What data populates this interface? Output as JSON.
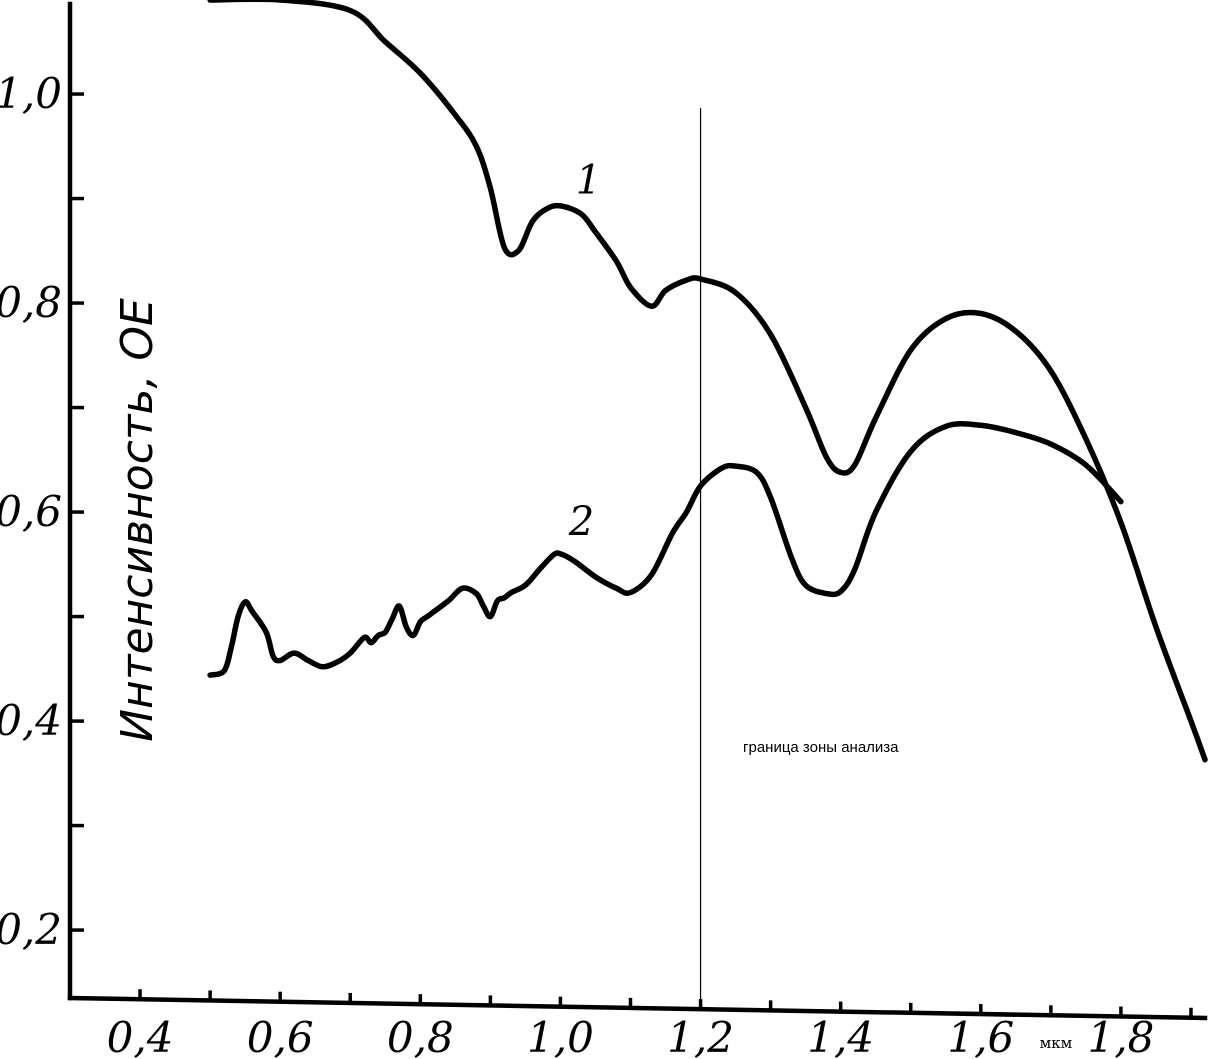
{
  "chart_data": {
    "type": "line",
    "title": "",
    "xlabel": "мкм",
    "ylabel": "Интенсивность, ОЕ",
    "xlim": [
      0.3,
      1.92
    ],
    "ylim": [
      0.135,
      1.09
    ],
    "x_ticks": [
      0.4,
      0.5,
      0.6,
      0.7,
      0.8,
      0.9,
      1.0,
      1.1,
      1.2,
      1.3,
      1.4,
      1.5,
      1.6,
      1.7,
      1.8,
      1.9
    ],
    "x_tick_labels": [
      {
        "value": 0.4,
        "label": "0,4"
      },
      {
        "value": 0.6,
        "label": "0,6"
      },
      {
        "value": 0.8,
        "label": "0,8"
      },
      {
        "value": 1.0,
        "label": "1,0"
      },
      {
        "value": 1.2,
        "label": "1,2"
      },
      {
        "value": 1.4,
        "label": "1,4"
      },
      {
        "value": 1.6,
        "label": "1,6"
      },
      {
        "value": 1.8,
        "label": "1,8"
      }
    ],
    "y_ticks": [
      0.2,
      0.3,
      0.4,
      0.5,
      0.6,
      0.7,
      0.8,
      0.9,
      1.0
    ],
    "y_tick_labels": [
      {
        "value": 0.2,
        "label": "0,2"
      },
      {
        "value": 0.4,
        "label": "0,4"
      },
      {
        "value": 0.6,
        "label": "0,6"
      },
      {
        "value": 0.8,
        "label": "0,8"
      },
      {
        "value": 1.0,
        "label": "1,0"
      }
    ],
    "grid": false,
    "series": [
      {
        "name": "1",
        "x": [
          0.5,
          0.6,
          0.7,
          0.75,
          0.8,
          0.85,
          0.88,
          0.9,
          0.92,
          0.94,
          0.96,
          0.98,
          1.0,
          1.03,
          1.05,
          1.08,
          1.1,
          1.13,
          1.15,
          1.18,
          1.2,
          1.25,
          1.3,
          1.35,
          1.38,
          1.4,
          1.42,
          1.45,
          1.5,
          1.55,
          1.6,
          1.65,
          1.7,
          1.75,
          1.8,
          1.85,
          1.9,
          1.92
        ],
        "y": [
          1.09,
          1.09,
          1.08,
          1.05,
          1.02,
          0.98,
          0.95,
          0.91,
          0.853,
          0.85,
          0.878,
          0.89,
          0.893,
          0.885,
          0.868,
          0.84,
          0.815,
          0.797,
          0.812,
          0.822,
          0.823,
          0.81,
          0.77,
          0.7,
          0.652,
          0.638,
          0.645,
          0.69,
          0.755,
          0.785,
          0.79,
          0.773,
          0.735,
          0.67,
          0.59,
          0.49,
          0.4,
          0.363
        ]
      },
      {
        "name": "2",
        "x": [
          0.5,
          0.52,
          0.53,
          0.54,
          0.55,
          0.56,
          0.58,
          0.59,
          0.6,
          0.62,
          0.64,
          0.66,
          0.68,
          0.7,
          0.72,
          0.73,
          0.74,
          0.75,
          0.76,
          0.77,
          0.78,
          0.79,
          0.8,
          0.81,
          0.82,
          0.84,
          0.86,
          0.88,
          0.89,
          0.9,
          0.91,
          0.92,
          0.93,
          0.95,
          0.97,
          0.99,
          1.0,
          1.02,
          1.05,
          1.08,
          1.1,
          1.13,
          1.16,
          1.18,
          1.2,
          1.23,
          1.25,
          1.28,
          1.3,
          1.33,
          1.35,
          1.38,
          1.4,
          1.42,
          1.45,
          1.5,
          1.55,
          1.6,
          1.65,
          1.7,
          1.75,
          1.8
        ],
        "y": [
          0.444,
          0.448,
          0.47,
          0.5,
          0.514,
          0.505,
          0.485,
          0.462,
          0.458,
          0.465,
          0.458,
          0.452,
          0.456,
          0.465,
          0.48,
          0.475,
          0.482,
          0.485,
          0.498,
          0.51,
          0.49,
          0.482,
          0.495,
          0.5,
          0.505,
          0.515,
          0.527,
          0.522,
          0.51,
          0.5,
          0.515,
          0.518,
          0.523,
          0.53,
          0.545,
          0.559,
          0.56,
          0.553,
          0.538,
          0.527,
          0.523,
          0.54,
          0.58,
          0.6,
          0.625,
          0.642,
          0.644,
          0.638,
          0.614,
          0.556,
          0.53,
          0.522,
          0.524,
          0.545,
          0.6,
          0.658,
          0.682,
          0.683,
          0.676,
          0.665,
          0.645,
          0.61
        ]
      }
    ],
    "annotations": [
      {
        "text": "граница зоны анализа",
        "x": 1.2
      }
    ]
  }
}
